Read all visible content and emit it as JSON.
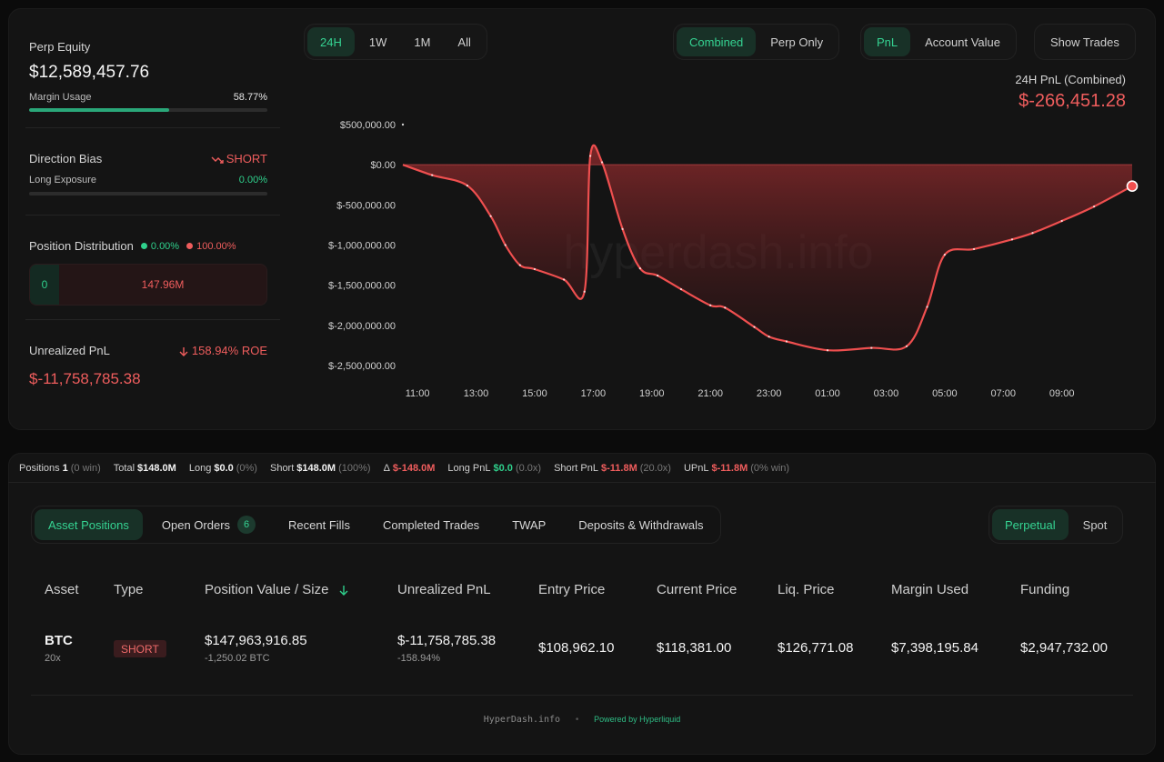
{
  "equity": {
    "label": "Perp Equity",
    "value": "$12,589,457.76",
    "margin_label": "Margin Usage",
    "margin_value": "58.77%",
    "margin_fraction": 0.5877
  },
  "direction": {
    "label": "Direction Bias",
    "value": "SHORT",
    "long_label": "Long Exposure",
    "long_value": "0.00%",
    "long_fraction": 0
  },
  "distribution": {
    "label": "Position Distribution",
    "long_pct": "0.00%",
    "short_pct": "100.00%",
    "long_value": "0",
    "short_value": "147.96M"
  },
  "unrealized": {
    "label": "Unrealized PnL",
    "roe": "158.94% ROE",
    "value": "$-11,758,785.38"
  },
  "range_tabs": [
    "24H",
    "1W",
    "1M",
    "All"
  ],
  "mode_tabs": [
    "Combined",
    "Perp Only"
  ],
  "metric_tabs": [
    "PnL",
    "Account Value"
  ],
  "show_trades": "Show Trades",
  "pnl_header": {
    "title": "24H PnL (Combined)",
    "value": "$-266,451.28"
  },
  "watermark": "hyperdash.info",
  "chart_data": {
    "type": "area",
    "title": "24H PnL (Combined)",
    "xlabel": "",
    "ylabel": "",
    "ylim": [
      -2500000,
      500000
    ],
    "y_ticks": [
      "$500,000.00",
      "$0.00",
      "$-500,000.00",
      "$-1,000,000.00",
      "$-1,500,000.00",
      "$-2,000,000.00",
      "$-2,500,000.00"
    ],
    "y_tick_values": [
      500000,
      0,
      -500000,
      -1000000,
      -1500000,
      -2000000,
      -2500000
    ],
    "x_ticks": [
      "11:00",
      "13:00",
      "15:00",
      "17:00",
      "19:00",
      "21:00",
      "23:00",
      "01:00",
      "03:00",
      "05:00",
      "07:00",
      "09:00"
    ],
    "x_range_hours": [
      10.5,
      35.4
    ],
    "series": [
      {
        "x": [
          10.5,
          11.5,
          12.7,
          13.5,
          14.0,
          14.5,
          15.0,
          16.0,
          16.7,
          16.9,
          17.3,
          18.0,
          18.6,
          19.2,
          20.0,
          21.0,
          21.5,
          22.5,
          23.0,
          23.6,
          25.0,
          26.5,
          27.7,
          28.4,
          29.0,
          30.0,
          31.3,
          32.0,
          33.0,
          34.1,
          35.4
        ],
        "y": [
          0,
          -130000,
          -260000,
          -640000,
          -1000000,
          -1250000,
          -1300000,
          -1430000,
          -1580000,
          110000,
          30000,
          -800000,
          -1290000,
          -1380000,
          -1550000,
          -1750000,
          -1780000,
          -2020000,
          -2140000,
          -2200000,
          -2310000,
          -2280000,
          -2260000,
          -1770000,
          -1120000,
          -1050000,
          -930000,
          -850000,
          -700000,
          -520000,
          -266451
        ]
      }
    ],
    "grid": false,
    "legend": "none"
  },
  "stats": [
    {
      "label": "Positions",
      "value": "1",
      "extra": "(0 win)"
    },
    {
      "label": "Total",
      "value": "$148.0M",
      "extra": ""
    },
    {
      "label": "Long",
      "value": "$0.0",
      "extra": "(0%)"
    },
    {
      "label": "Short",
      "value": "$148.0M",
      "extra": "(100%)"
    },
    {
      "label": "Δ",
      "value": "$-148.0M",
      "extra": "",
      "color": "red"
    },
    {
      "label": "Long PnL",
      "value": "$0.0",
      "extra": "(0.0x)",
      "color": "green"
    },
    {
      "label": "Short PnL",
      "value": "$-11.8M",
      "extra": "(20.0x)",
      "color": "red"
    },
    {
      "label": "UPnL",
      "value": "$-11.8M",
      "extra": "(0% win)",
      "color": "red"
    }
  ],
  "tabs": {
    "asset_positions": "Asset Positions",
    "open_orders": "Open Orders",
    "open_orders_count": "6",
    "recent_fills": "Recent Fills",
    "completed_trades": "Completed Trades",
    "twap": "TWAP",
    "deposits": "Deposits & Withdrawals",
    "perpetual": "Perpetual",
    "spot": "Spot"
  },
  "table": {
    "headers": {
      "asset": "Asset",
      "type": "Type",
      "position_value": "Position Value / Size",
      "unrealized": "Unrealized PnL",
      "entry": "Entry Price",
      "current": "Current Price",
      "liq": "Liq. Price",
      "margin": "Margin Used",
      "funding": "Funding"
    },
    "row": {
      "asset": "BTC",
      "leverage": "20x",
      "type": "SHORT",
      "position_value": "$147,963,916.85",
      "size": "-1,250.02 BTC",
      "unrealized": "$-11,758,785.38",
      "unrealized_pct": "-158.94%",
      "entry": "$108,962.10",
      "current": "$118,381.00",
      "liq": "$126,771.08",
      "margin": "$7,398,195.84",
      "funding": "$2,947,732.00"
    }
  },
  "footer": {
    "site": "HyperDash.info",
    "powered": "Powered by Hyperliquid"
  },
  "colors": {
    "accent_green": "#2fd08c",
    "negative_red": "#ef5d5d",
    "background": "#0b0b0b",
    "card": "#141414"
  }
}
